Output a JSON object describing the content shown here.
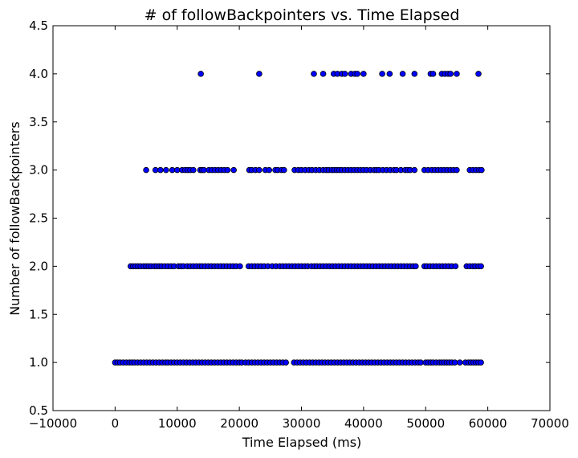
{
  "chart_data": {
    "type": "scatter",
    "title": "# of followBackpointers vs. Time Elapsed",
    "xlabel": "Time Elapsed (ms)",
    "ylabel": "Number of followBackpointers",
    "xlim": [
      -10000,
      70000
    ],
    "ylim": [
      0.5,
      4.5
    ],
    "xticks": [
      -10000,
      0,
      10000,
      20000,
      30000,
      40000,
      50000,
      60000,
      70000
    ],
    "yticks": [
      0.5,
      1.0,
      1.5,
      2.0,
      2.5,
      3.0,
      3.5,
      4.0,
      4.5
    ],
    "xtick_labels": [
      "−10000",
      "0",
      "10000",
      "20000",
      "30000",
      "40000",
      "50000",
      "60000",
      "70000"
    ],
    "ytick_labels": [
      "0.5",
      "1.0",
      "1.5",
      "2.0",
      "2.5",
      "3.0",
      "3.5",
      "4.0",
      "4.5"
    ],
    "grid": false,
    "marker_color": "#0000ff",
    "marker_edge_color": "#000000",
    "points": [
      {
        "y": 4,
        "x": [
          13800,
          23200,
          32000,
          33500,
          35200,
          35800,
          36500,
          37000,
          38000,
          38600,
          39000,
          40000,
          43000,
          44200,
          46300,
          48200,
          50800,
          51200,
          52600,
          53100,
          53600,
          54000,
          55000,
          58500
        ]
      },
      {
        "y": 3,
        "x": [
          5000,
          6500,
          7300,
          8200,
          9200,
          10000,
          10800,
          11300,
          11700,
          12100,
          12600,
          13700,
          14000,
          14300,
          15100,
          15600,
          16100,
          16600,
          17100,
          17600,
          18100,
          19100,
          21600,
          22000,
          22600,
          23200,
          24200,
          24800,
          25800,
          26200,
          26800,
          27200,
          28900,
          29500,
          30000,
          30600,
          31200,
          31700,
          32300,
          32900,
          33500,
          34000,
          34400,
          34900,
          35300,
          35700,
          36100,
          36500,
          37000,
          37500,
          38000,
          38500,
          39000,
          39500,
          40000,
          40500,
          41100,
          41700,
          42100,
          42500,
          43100,
          43700,
          44300,
          44900,
          45300,
          46000,
          46700,
          47100,
          47500,
          48200,
          49800,
          50400,
          51000,
          51500,
          52000,
          52500,
          53000,
          53500,
          54000,
          54500,
          55000,
          57100,
          57600,
          58100,
          58600,
          59000
        ]
      },
      {
        "y": 2,
        "x": [
          2500,
          2900,
          3300,
          3700,
          4100,
          4600,
          5000,
          5400,
          5800,
          6300,
          6700,
          7100,
          7500,
          8000,
          8500,
          9000,
          9500,
          10200,
          10600,
          11000,
          11600,
          12100,
          12600,
          13100,
          13600,
          14000,
          14500,
          15000,
          15500,
          16000,
          16500,
          17000,
          17500,
          18000,
          18500,
          19000,
          19500,
          20100,
          21500,
          22000,
          22500,
          23000,
          23500,
          24000,
          24600,
          25300,
          25900,
          26500,
          27000,
          27500,
          28000,
          28500,
          29000,
          29500,
          30000,
          30500,
          31000,
          31600,
          32100,
          32500,
          33000,
          33500,
          34000,
          34500,
          35000,
          35500,
          36000,
          36500,
          37000,
          37500,
          38000,
          38500,
          39000,
          39500,
          40000,
          40500,
          41000,
          41500,
          42000,
          42500,
          43000,
          43500,
          44000,
          44500,
          45000,
          45500,
          46000,
          46500,
          47000,
          47500,
          48000,
          48400,
          49800,
          50200,
          50700,
          51200,
          51700,
          52200,
          52700,
          53200,
          53700,
          54200,
          54800,
          56600,
          57100,
          57600,
          58000,
          58500,
          58900
        ]
      },
      {
        "y": 1,
        "x": [
          0,
          400,
          800,
          1300,
          1800,
          2300,
          2700,
          3100,
          3600,
          4100,
          4600,
          5100,
          5600,
          6100,
          6600,
          7100,
          7600,
          8100,
          8500,
          9000,
          9500,
          10000,
          10500,
          11000,
          11500,
          12000,
          12500,
          13000,
          13500,
          14000,
          14500,
          15000,
          15500,
          16000,
          16500,
          17000,
          17500,
          18000,
          18500,
          19000,
          19500,
          20000,
          20400,
          21000,
          21500,
          22000,
          22500,
          23000,
          23500,
          24000,
          24500,
          25000,
          25500,
          26000,
          26500,
          27000,
          27500,
          28800,
          29300,
          29800,
          30300,
          30800,
          31300,
          31800,
          32300,
          32800,
          33300,
          33800,
          34300,
          34800,
          35300,
          35800,
          36300,
          36800,
          37300,
          37800,
          38300,
          38800,
          39300,
          39800,
          40300,
          40800,
          41300,
          41800,
          42300,
          42800,
          43300,
          43800,
          44300,
          44800,
          45300,
          45800,
          46300,
          46800,
          47300,
          47800,
          48300,
          48800,
          49200,
          50000,
          50400,
          50800,
          51200,
          51700,
          52200,
          52600,
          53000,
          53400,
          53800,
          54200,
          54700,
          55500,
          56400,
          56900,
          57300,
          57700,
          58100,
          58500,
          58900
        ]
      }
    ]
  }
}
